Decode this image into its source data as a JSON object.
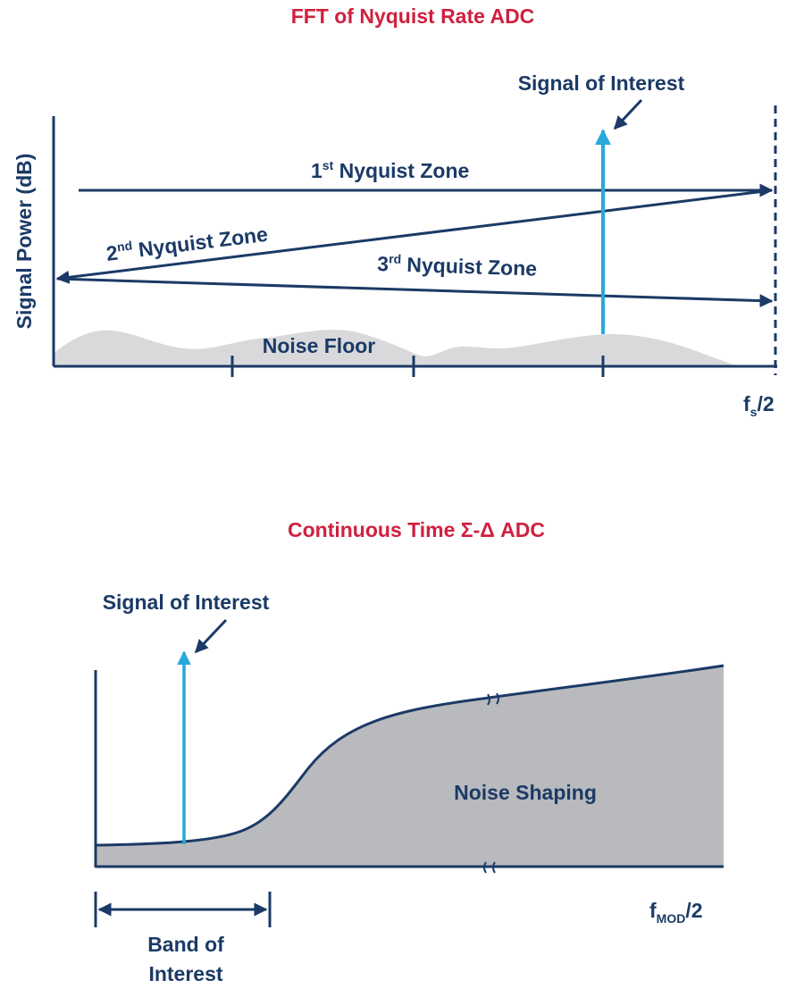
{
  "colors": {
    "title_red": "#d0203f",
    "navy": "#1b3a66",
    "cyan_signal": "#27a9d9",
    "noise_fill_light": "#d9d9dc",
    "noise_fill_dark": "#b9babd"
  },
  "top": {
    "title": "FFT of Nyquist Rate ADC",
    "signal_label": "Signal of Interest",
    "y_axis_label": "Signal Power (dB)",
    "zone1": {
      "ordinal": "1",
      "suffix": "st",
      "text": " Nyquist Zone"
    },
    "zone2": {
      "ordinal": "2",
      "suffix": "nd",
      "text": " Nyquist Zone"
    },
    "zone3": {
      "ordinal": "3",
      "suffix": "rd",
      "text": " Nyquist Zone"
    },
    "noise_label": "Noise Floor",
    "x_end": {
      "base": "f",
      "sub": "s",
      "rest": "/2"
    }
  },
  "bottom": {
    "title": "Continuous Time Σ-Δ ADC",
    "signal_label": "Signal of Interest",
    "noise_label": "Noise Shaping",
    "x_end": {
      "base": "f",
      "sub": "MOD",
      "rest": "/2"
    },
    "band_line1": "Band of",
    "band_line2": "Interest"
  }
}
